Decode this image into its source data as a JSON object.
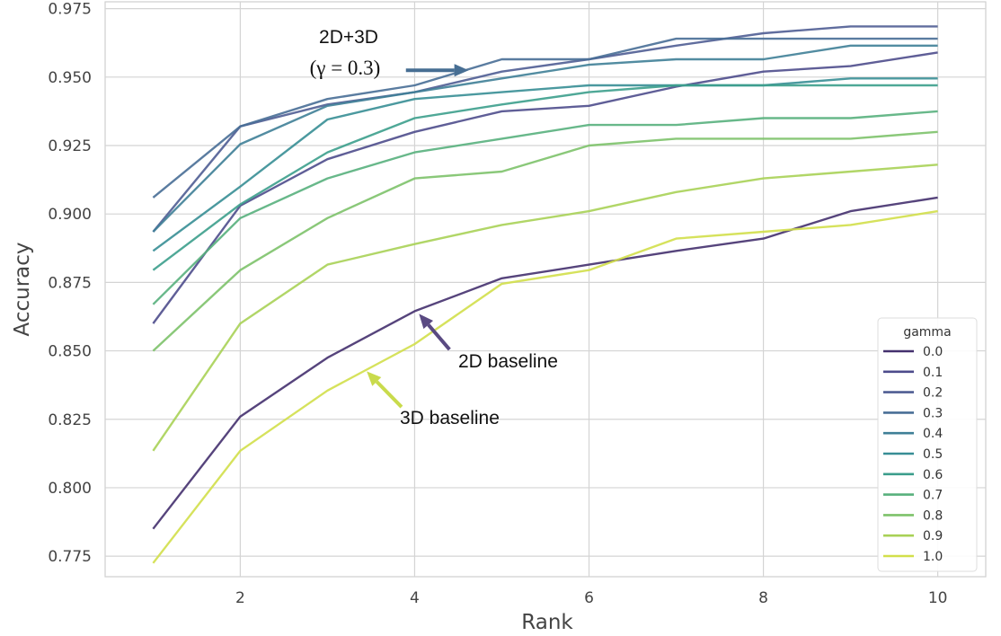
{
  "chart_data": {
    "type": "line",
    "xlabel": "Rank",
    "ylabel": "Accuracy",
    "xlim": [
      0.45,
      10.55
    ],
    "ylim": [
      0.7675,
      0.9775
    ],
    "x": [
      1,
      2,
      3,
      4,
      5,
      6,
      7,
      8,
      9,
      10
    ],
    "x_ticks": [
      2,
      4,
      6,
      8,
      10
    ],
    "y_ticks": [
      0.775,
      0.8,
      0.825,
      0.85,
      0.875,
      0.9,
      0.925,
      0.95,
      0.975
    ],
    "y_tick_labels": [
      "0.775",
      "0.800",
      "0.825",
      "0.850",
      "0.875",
      "0.900",
      "0.925",
      "0.950",
      "0.975"
    ],
    "grid": true,
    "legend": {
      "title": "gamma",
      "placement": "lower-right"
    },
    "series": [
      {
        "name": "0.0",
        "color": "#44306e",
        "values": [
          0.785,
          0.826,
          0.8475,
          0.8645,
          0.8765,
          0.8815,
          0.8865,
          0.891,
          0.901,
          0.906
        ]
      },
      {
        "name": "0.1",
        "color": "#4e4c8c",
        "values": [
          0.86,
          0.903,
          0.92,
          0.93,
          0.9375,
          0.9395,
          0.9465,
          0.952,
          0.954,
          0.959
        ]
      },
      {
        "name": "0.2",
        "color": "#4f5d93",
        "values": [
          0.8935,
          0.932,
          0.94,
          0.9445,
          0.952,
          0.9565,
          0.9615,
          0.966,
          0.9685,
          0.9685
        ]
      },
      {
        "name": "0.3",
        "color": "#486e96",
        "values": [
          0.906,
          0.932,
          0.942,
          0.947,
          0.9565,
          0.9565,
          0.964,
          0.964,
          0.964,
          0.964
        ]
      },
      {
        "name": "0.4",
        "color": "#3f7f97",
        "values": [
          0.8935,
          0.9255,
          0.9395,
          0.9445,
          0.9495,
          0.9545,
          0.9565,
          0.9565,
          0.9615,
          0.9615
        ]
      },
      {
        "name": "0.5",
        "color": "#378e95",
        "values": [
          0.8865,
          0.91,
          0.9345,
          0.942,
          0.9445,
          0.947,
          0.947,
          0.947,
          0.9495,
          0.9495
        ]
      },
      {
        "name": "0.6",
        "color": "#3c9e8c",
        "values": [
          0.8795,
          0.9035,
          0.9225,
          0.935,
          0.94,
          0.9445,
          0.947,
          0.947,
          0.947,
          0.947
        ]
      },
      {
        "name": "0.7",
        "color": "#58b07d",
        "values": [
          0.867,
          0.8985,
          0.913,
          0.9225,
          0.9275,
          0.9325,
          0.9325,
          0.935,
          0.935,
          0.9375
        ]
      },
      {
        "name": "0.8",
        "color": "#7dc26a",
        "values": [
          0.85,
          0.8795,
          0.8985,
          0.913,
          0.9155,
          0.925,
          0.9275,
          0.9275,
          0.9275,
          0.93
        ]
      },
      {
        "name": "0.9",
        "color": "#a8d156",
        "values": [
          0.8135,
          0.86,
          0.8815,
          0.889,
          0.896,
          0.901,
          0.908,
          0.913,
          0.9155,
          0.918
        ]
      },
      {
        "name": "1.0",
        "color": "#d2df4a",
        "values": [
          0.7725,
          0.8135,
          0.8355,
          0.8525,
          0.8745,
          0.8795,
          0.891,
          0.8935,
          0.896,
          0.901
        ]
      }
    ],
    "annotations": [
      {
        "id": "ann-2d3d",
        "lines": [
          "2D+3D",
          "(γ = 0.3)"
        ],
        "arrow_color": "#476e93",
        "arrow_from": [
          3.9,
          0.9525
        ],
        "arrow_to": [
          4.62,
          0.9525
        ]
      },
      {
        "id": "ann-2d",
        "lines": [
          "2D baseline"
        ],
        "arrow_color": "#5a4a82",
        "arrow_from": [
          4.4,
          0.8505
        ],
        "arrow_to": [
          4.05,
          0.8635
        ]
      },
      {
        "id": "ann-3d",
        "lines": [
          "3D baseline"
        ],
        "arrow_color": "#c9db4c",
        "arrow_from": [
          3.85,
          0.8295
        ],
        "arrow_to": [
          3.45,
          0.8425
        ]
      }
    ]
  }
}
